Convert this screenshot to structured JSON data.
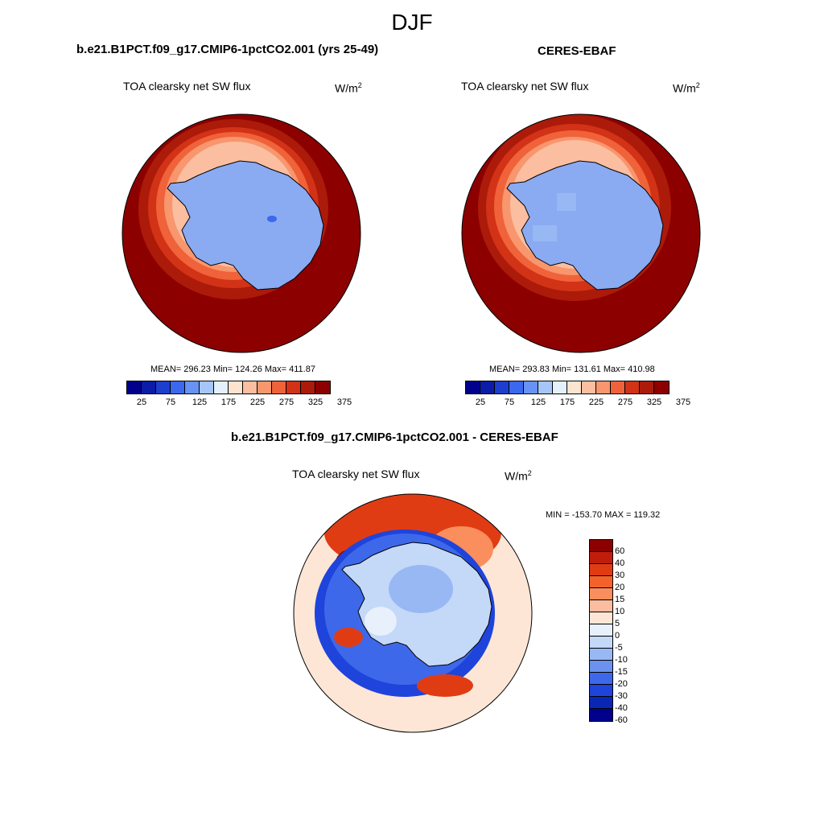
{
  "figure": {
    "title": "DJF"
  },
  "panels": {
    "model": {
      "title": "b.e21.B1PCT.f09_g17.CMIP6-1pctCO2.001 (yrs 25-49)",
      "variable": "TOA clearsky net SW flux",
      "units": "W/m",
      "units_exp": "2",
      "stats": "MEAN= 296.23  Min= 124.26  Max= 411.87"
    },
    "obs": {
      "title": "CERES-EBAF",
      "variable": "TOA clearsky net SW flux",
      "units": "W/m",
      "units_exp": "2",
      "stats": "MEAN= 293.83  Min= 131.61  Max= 410.98"
    },
    "diff": {
      "title": "b.e21.B1PCT.f09_g17.CMIP6-1pctCO2.001 - CERES-EBAF",
      "variable": "TOA clearsky net SW flux",
      "units": "W/m",
      "units_exp": "2",
      "stats": "MIN = -153.70 MAX = 119.32"
    }
  },
  "colorbars": {
    "abs_colors": [
      "#00008c",
      "#0a1ca8",
      "#1e3ed0",
      "#3a68ee",
      "#6892f4",
      "#a6c6fa",
      "#e4f0fc",
      "#fde4d0",
      "#fbbea0",
      "#f8966e",
      "#f0623a",
      "#d23216",
      "#ac1a0a",
      "#8c0000"
    ],
    "abs_labels": [
      "25",
      "75",
      "125",
      "175",
      "225",
      "275",
      "325",
      "375"
    ],
    "diff_colors": [
      "#8c0000",
      "#c01e0a",
      "#e03c14",
      "#f4622c",
      "#fa8e5c",
      "#fcbca0",
      "#fde6d6",
      "#e8f0fc",
      "#c4d8f8",
      "#98b8f4",
      "#6a92ee",
      "#3e68ea",
      "#1e44dc",
      "#0a26b4",
      "#00008c"
    ],
    "diff_labels": [
      "60",
      "40",
      "30",
      "20",
      "15",
      "10",
      "5",
      "0",
      "-5",
      "-10",
      "-15",
      "-20",
      "-30",
      "-40",
      "-60"
    ]
  },
  "legend": {
    "colors": {
      "ocean_high": "#8c0000",
      "ocean_mid": "#d23216",
      "sea_ice_edge": "#f8966e",
      "ice_sheet": "#8aaaf2",
      "diff_background": "#fde6d6",
      "diff_negative": "#1e44dc",
      "diff_positive": "#e03c14"
    }
  }
}
